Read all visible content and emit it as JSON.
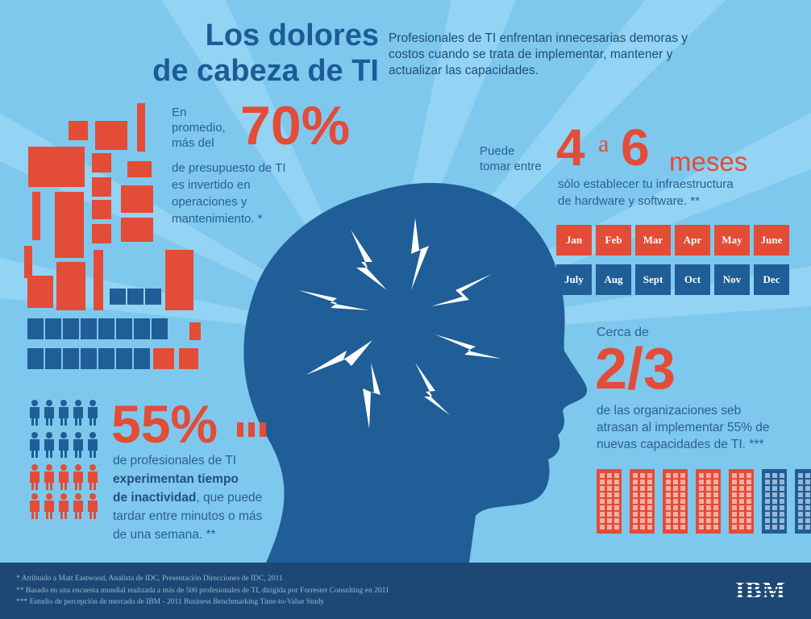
{
  "title_line1": "Los dolores",
  "title_line2": "de cabeza de TI",
  "intro": "Profesionales de TI enfrentan innecesarias demoras y costos cuando se trata de implementar, mantener y actualizar las capacidades.",
  "stat_budget": {
    "pre_lines": [
      "En",
      "promedio,",
      "más del"
    ],
    "value": "70%",
    "post_lines": [
      "de presupuesto de TI",
      "es invertido en",
      "operaciones y",
      "mantenimiento. *"
    ]
  },
  "stat_time": {
    "pre_lines": [
      "Puede",
      "tomar entre"
    ],
    "value_start": "4",
    "connector": "a",
    "value_end": "6",
    "unit": "meses",
    "post_lines": [
      "sólo establecer tu infraestructura",
      "de hardware y software. **"
    ],
    "months_row1": [
      "Jan",
      "Feb",
      "Mar",
      "Apr",
      "May",
      "June"
    ],
    "months_row2": [
      "July",
      "Aug",
      "Sept",
      "Oct",
      "Nov",
      "Dec"
    ]
  },
  "stat_orgs": {
    "pre": "Cerca de",
    "value": "2/3",
    "post_lines": [
      "de las organizaciones seb",
      "atrasan al implementar 55% de",
      "nuevas capacidades de TI. ***"
    ],
    "buildings_red": 5,
    "buildings_blue": 2
  },
  "stat_downtime": {
    "value": "55%",
    "line1": "de profesionales de TI",
    "line2_bold": "experimentan tiempo",
    "line3_bold": "de inactividad",
    "line3_rest": ", que puede",
    "line4": "tardar entre minutos o más",
    "line5": "de una semana. **"
  },
  "footnotes": [
    "*  Atribuido a Matt Eastwood, Analista de IDC, Presentación Direcciones de IDC, 2011",
    "**  Basado en una encuesta mundial realizada a más de 500 profesionales de TI, dirigida por Forrester Consulting en 2011",
    "*** Estudio de percepción de mercado de IBM - 2011 Business Benchmarking Time-to-Value Study"
  ],
  "logo": "IBM",
  "colors": {
    "background": "#7ec8ee",
    "red": "#e34c36",
    "blue": "#1f5e97",
    "dark_blue": "#1d4876"
  }
}
